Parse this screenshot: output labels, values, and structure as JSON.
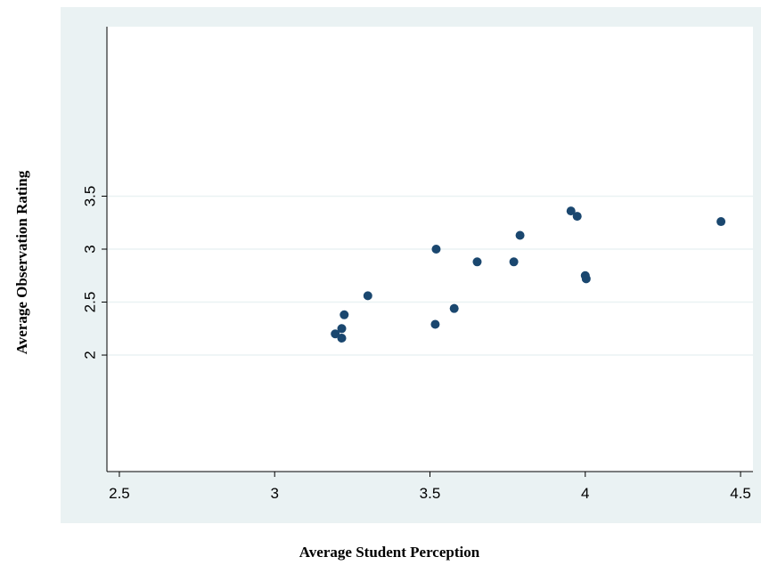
{
  "chart_data": {
    "type": "scatter",
    "x_label": "Average Student Perception",
    "y_label": "Average Observation Rating",
    "color": "#1a476f",
    "x": [
      3.195,
      3.216,
      3.216,
      3.224,
      3.3,
      3.517,
      3.52,
      3.578,
      3.652,
      3.77,
      3.79,
      3.954,
      3.974,
      4.0,
      4.003,
      4.437
    ],
    "values": [
      2.2,
      2.25,
      2.16,
      2.38,
      2.56,
      2.29,
      3.0,
      2.44,
      2.88,
      2.88,
      3.13,
      3.36,
      3.31,
      2.75,
      2.72,
      3.26
    ],
    "xlim": [
      2.46,
      4.54
    ],
    "ylim": [
      0.9,
      5.1
    ],
    "xticks": [
      2.5,
      3,
      3.5,
      4,
      4.5
    ],
    "yticks": [
      2,
      2.5,
      3,
      3.5
    ],
    "grid": true
  }
}
